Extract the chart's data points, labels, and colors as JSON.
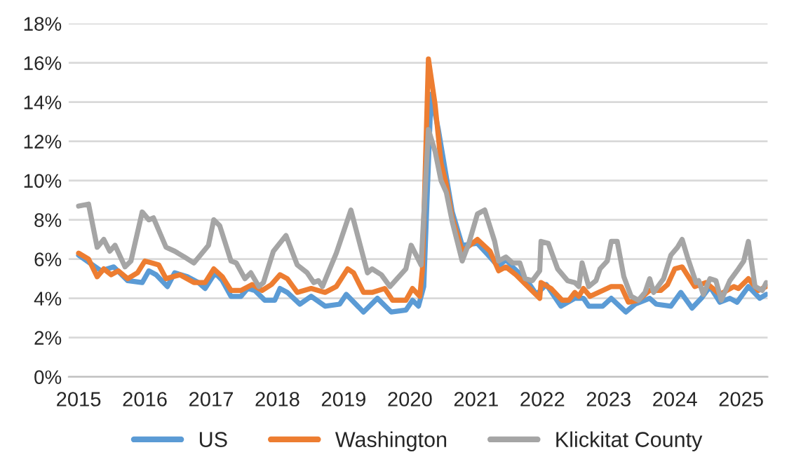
{
  "chart_data": {
    "type": "line",
    "xlim": [
      2014.85,
      2025.4
    ],
    "xticks": [
      2015,
      2016,
      2017,
      2018,
      2019,
      2020,
      2021,
      2022,
      2023,
      2024,
      2025
    ],
    "ylim": [
      0,
      18
    ],
    "yticks": [
      {
        "value": 0,
        "label": "0%"
      },
      {
        "value": 2,
        "label": "2%"
      },
      {
        "value": 4,
        "label": "4%"
      },
      {
        "value": 6,
        "label": "6%"
      },
      {
        "value": 8,
        "label": "8%"
      },
      {
        "value": 10,
        "label": "10%"
      },
      {
        "value": 12,
        "label": "12%"
      },
      {
        "value": 14,
        "label": "14%"
      },
      {
        "value": 16,
        "label": "16%"
      },
      {
        "value": 18,
        "label": "18%"
      }
    ],
    "grid": "y",
    "legend": "bottom",
    "marker": "none",
    "line_style": "solid",
    "series": [
      {
        "name": "US",
        "color": "#5b9bd5",
        "x": [
          2015.0,
          2015.17,
          2015.34,
          2015.53,
          2015.74,
          2015.96,
          2016.06,
          2016.17,
          2016.34,
          2016.45,
          2016.64,
          2016.81,
          2016.91,
          2017.06,
          2017.17,
          2017.3,
          2017.45,
          2017.55,
          2017.66,
          2017.81,
          2017.96,
          2018.04,
          2018.15,
          2018.34,
          2018.51,
          2018.72,
          2018.94,
          2019.04,
          2019.3,
          2019.51,
          2019.72,
          2019.94,
          2020.04,
          2020.13,
          2020.21,
          2020.32,
          2020.43,
          2020.53,
          2020.64,
          2020.79,
          2021.02,
          2021.21,
          2021.34,
          2021.45,
          2021.55,
          2021.77,
          2021.91,
          2022.06,
          2022.28,
          2022.49,
          2022.62,
          2022.7,
          2022.91,
          2023.04,
          2023.26,
          2023.4,
          2023.62,
          2023.72,
          2023.94,
          2024.09,
          2024.26,
          2024.4,
          2024.53,
          2024.68,
          2024.83,
          2024.94,
          2025.11,
          2025.28,
          2025.38
        ],
        "values": [
          6.2,
          5.8,
          5.4,
          5.6,
          4.9,
          4.8,
          5.4,
          5.2,
          4.6,
          5.3,
          5.1,
          4.8,
          4.5,
          5.3,
          4.9,
          4.1,
          4.1,
          4.5,
          4.4,
          3.9,
          3.9,
          4.5,
          4.3,
          3.7,
          4.1,
          3.6,
          3.7,
          4.2,
          3.3,
          4.0,
          3.3,
          3.4,
          3.9,
          3.6,
          4.6,
          14.4,
          12.6,
          10.6,
          8.4,
          6.7,
          6.8,
          6.1,
          5.6,
          6.0,
          5.6,
          4.9,
          4.2,
          4.7,
          3.6,
          4.0,
          4.0,
          3.6,
          3.6,
          4.0,
          3.3,
          3.7,
          4.0,
          3.7,
          3.6,
          4.3,
          3.5,
          4.0,
          4.6,
          3.8,
          4.0,
          3.8,
          4.6,
          4.0,
          4.2
        ]
      },
      {
        "name": "Washington",
        "color": "#ed7d31",
        "x": [
          2015.0,
          2015.15,
          2015.28,
          2015.38,
          2015.49,
          2015.6,
          2015.74,
          2015.89,
          2016.0,
          2016.11,
          2016.21,
          2016.32,
          2016.53,
          2016.74,
          2016.91,
          2017.04,
          2017.17,
          2017.3,
          2017.45,
          2017.62,
          2017.77,
          2017.91,
          2018.04,
          2018.15,
          2018.3,
          2018.51,
          2018.72,
          2018.89,
          2019.06,
          2019.15,
          2019.3,
          2019.43,
          2019.62,
          2019.74,
          2019.94,
          2020.04,
          2020.15,
          2020.19,
          2020.28,
          2020.38,
          2020.47,
          2020.55,
          2020.64,
          2020.79,
          2021.02,
          2021.21,
          2021.34,
          2021.45,
          2021.6,
          2021.81,
          2021.96,
          2021.98,
          2022.13,
          2022.3,
          2022.4,
          2022.49,
          2022.55,
          2022.62,
          2022.72,
          2022.91,
          2023.04,
          2023.19,
          2023.3,
          2023.45,
          2023.62,
          2023.79,
          2023.89,
          2024.0,
          2024.11,
          2024.3,
          2024.47,
          2024.68,
          2024.89,
          2024.96,
          2025.11,
          2025.26,
          2025.38
        ],
        "values": [
          6.3,
          6.0,
          5.1,
          5.5,
          5.2,
          5.4,
          5.0,
          5.3,
          5.9,
          5.8,
          5.7,
          5.0,
          5.2,
          4.8,
          4.8,
          5.5,
          5.1,
          4.4,
          4.4,
          4.7,
          4.4,
          4.7,
          5.2,
          5.0,
          4.3,
          4.5,
          4.3,
          4.6,
          5.5,
          5.3,
          4.3,
          4.3,
          4.5,
          3.9,
          3.9,
          4.5,
          4.1,
          5.5,
          16.2,
          13.9,
          10.9,
          9.8,
          8.1,
          6.4,
          7.0,
          6.4,
          5.4,
          5.6,
          5.2,
          4.5,
          4.0,
          4.8,
          4.5,
          3.9,
          3.9,
          4.3,
          4.1,
          4.5,
          4.1,
          4.4,
          4.6,
          4.6,
          3.8,
          3.9,
          4.4,
          4.4,
          4.7,
          5.5,
          5.6,
          4.6,
          4.8,
          4.2,
          4.6,
          4.5,
          5.0,
          4.4,
          4.6
        ]
      },
      {
        "name": "Klickitat County",
        "color": "#a5a5a5",
        "x": [
          2015.0,
          2015.15,
          2015.28,
          2015.38,
          2015.47,
          2015.55,
          2015.7,
          2015.79,
          2015.96,
          2016.06,
          2016.13,
          2016.32,
          2016.45,
          2016.6,
          2016.74,
          2016.96,
          2017.04,
          2017.13,
          2017.3,
          2017.38,
          2017.51,
          2017.6,
          2017.72,
          2017.79,
          2017.94,
          2018.13,
          2018.3,
          2018.45,
          2018.55,
          2018.62,
          2018.68,
          2018.89,
          2019.11,
          2019.36,
          2019.43,
          2019.57,
          2019.7,
          2019.94,
          2020.02,
          2020.17,
          2020.28,
          2020.38,
          2020.47,
          2020.55,
          2020.64,
          2020.79,
          2020.89,
          2021.02,
          2021.13,
          2021.28,
          2021.34,
          2021.45,
          2021.55,
          2021.66,
          2021.74,
          2021.85,
          2021.96,
          2021.98,
          2022.09,
          2022.23,
          2022.38,
          2022.49,
          2022.55,
          2022.6,
          2022.7,
          2022.81,
          2022.87,
          2022.98,
          2023.04,
          2023.13,
          2023.23,
          2023.34,
          2023.45,
          2023.55,
          2023.62,
          2023.68,
          2023.83,
          2023.94,
          2024.04,
          2024.11,
          2024.19,
          2024.32,
          2024.36,
          2024.43,
          2024.53,
          2024.62,
          2024.7,
          2024.83,
          2024.96,
          2025.04,
          2025.11,
          2025.21,
          2025.32,
          2025.38
        ],
        "values": [
          8.7,
          8.8,
          6.6,
          7.0,
          6.4,
          6.7,
          5.6,
          5.9,
          8.4,
          8.0,
          8.1,
          6.6,
          6.4,
          6.1,
          5.8,
          6.7,
          8.0,
          7.7,
          5.9,
          5.8,
          5.0,
          5.3,
          4.6,
          4.8,
          6.4,
          7.2,
          5.7,
          5.3,
          4.8,
          4.9,
          4.6,
          6.3,
          8.5,
          5.3,
          5.5,
          5.2,
          4.6,
          5.5,
          6.7,
          5.7,
          12.6,
          11.5,
          10.0,
          9.4,
          7.9,
          5.9,
          6.8,
          8.3,
          8.5,
          6.9,
          5.9,
          6.1,
          5.8,
          5.8,
          5.0,
          4.9,
          5.4,
          6.9,
          6.8,
          5.5,
          4.9,
          4.8,
          4.6,
          5.8,
          4.6,
          4.9,
          5.5,
          5.9,
          6.9,
          6.9,
          5.1,
          4.1,
          3.9,
          4.3,
          5.0,
          4.3,
          5.0,
          6.2,
          6.6,
          7.0,
          6.1,
          4.8,
          4.9,
          4.2,
          5.0,
          4.9,
          3.9,
          4.9,
          5.5,
          5.9,
          6.9,
          4.6,
          4.4,
          4.8
        ]
      }
    ]
  }
}
